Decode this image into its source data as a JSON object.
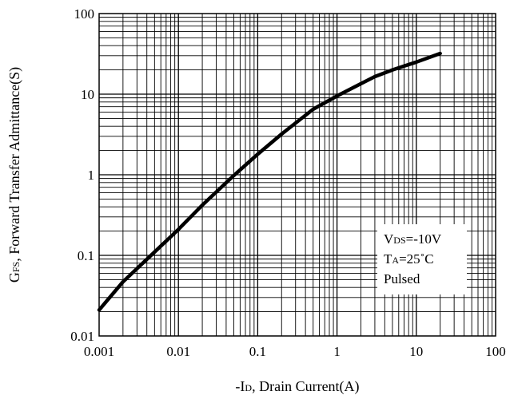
{
  "chart_data": {
    "type": "line",
    "title": "",
    "xlabel": {
      "prefix": "-I",
      "sub": "D",
      "suffix": ", Drain Current(A)"
    },
    "ylabel": {
      "prefix": "G",
      "sub": "FS",
      "suffix": ", Forward Transfer Admittance(S)"
    },
    "x_scale": "log",
    "y_scale": "log",
    "xlim": [
      0.001,
      100
    ],
    "ylim": [
      0.01,
      100
    ],
    "x_ticks": [
      0.001,
      0.01,
      0.1,
      1,
      10,
      100
    ],
    "x_tick_labels": [
      "0.001",
      "0.01",
      "0.1",
      "1",
      "10",
      "100"
    ],
    "y_ticks": [
      0.01,
      0.1,
      1,
      10,
      100
    ],
    "y_tick_labels": [
      "0.01",
      "0.1",
      "1",
      "10",
      "100"
    ],
    "grid": true,
    "series": [
      {
        "color": "#000000",
        "x": [
          0.001,
          0.002,
          0.005,
          0.01,
          0.02,
          0.05,
          0.1,
          0.2,
          0.5,
          1,
          2,
          3,
          5,
          10,
          20
        ],
        "y": [
          0.021,
          0.047,
          0.11,
          0.21,
          0.42,
          0.98,
          1.8,
          3.2,
          6.5,
          9.5,
          13.5,
          16.5,
          20,
          25,
          32
        ]
      }
    ],
    "annotations": [
      {
        "prefix": "V",
        "sub": "DS",
        "suffix": "=-10V"
      },
      {
        "prefix": "T",
        "sub": "A",
        "suffix": "=25˚C"
      },
      {
        "prefix": "Pulsed",
        "sub": "",
        "suffix": ""
      }
    ],
    "annotation_position": "bottom-right"
  }
}
